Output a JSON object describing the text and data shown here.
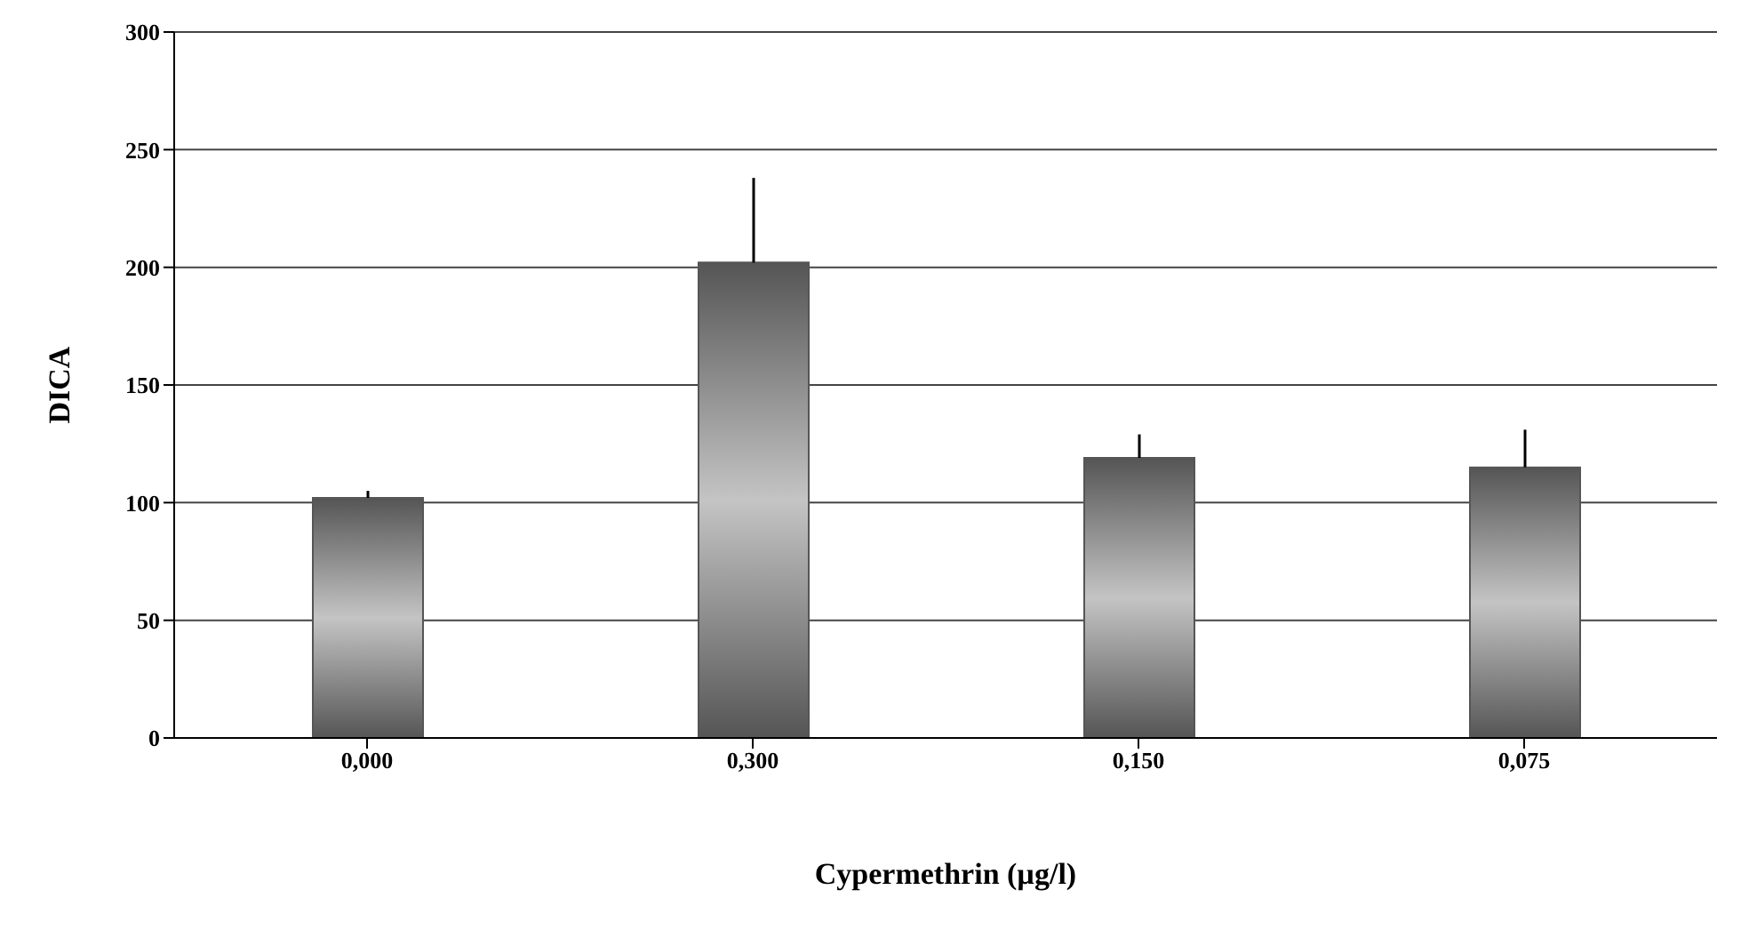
{
  "chart_data": {
    "type": "bar",
    "xlabel": "Cypermethrin (µg/l)",
    "ylabel": "DICA",
    "categories": [
      "0,000",
      "0,300",
      "0,150",
      "0,075"
    ],
    "values": [
      102,
      202,
      119,
      115
    ],
    "errors": [
      [
        102,
        105
      ],
      [
        202,
        238
      ],
      [
        119,
        129
      ],
      [
        115,
        131
      ]
    ],
    "color": "#555555",
    "ylim": [
      0,
      300
    ],
    "yticks": [
      0,
      50,
      100,
      150,
      200,
      250,
      300
    ],
    "grid": "y"
  }
}
